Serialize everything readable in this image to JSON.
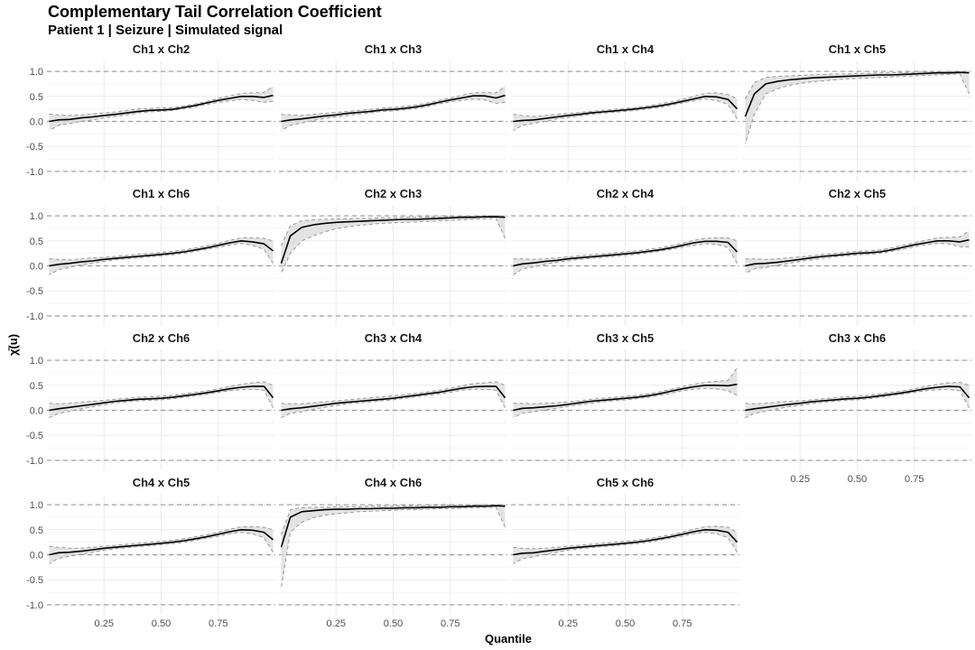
{
  "title": "Complementary Tail Correlation Coefficient",
  "subtitle": "Patient 1 | Seizure | Simulated signal",
  "colors": {
    "line": "#000000",
    "band_fill": "#d9d9d9",
    "band_border": "#999999",
    "reference_line": "#999999",
    "grid": "#ebebeb"
  },
  "chart_data": {
    "type": "line",
    "title": "Complementary Tail Correlation Coefficient",
    "subtitle": "Patient 1 | Seizure | Simulated signal",
    "xlabel": "Quantile",
    "ylabel": "χ̄(u)",
    "xlim": [
      0,
      1
    ],
    "ylim": [
      -1.2,
      1.2
    ],
    "x_ticks": [
      "0.25",
      "0.50",
      "0.75"
    ],
    "y_ticks": [
      "1.0",
      "0.5",
      "0.0",
      "-0.5",
      "-1.0"
    ],
    "reference_lines": [
      1,
      0,
      -1
    ],
    "grid": true,
    "facet_layout": {
      "columns": 4,
      "rows": 4
    },
    "x": [
      0.01,
      0.05,
      0.1,
      0.15,
      0.2,
      0.25,
      0.3,
      0.35,
      0.4,
      0.45,
      0.5,
      0.55,
      0.6,
      0.65,
      0.7,
      0.75,
      0.8,
      0.85,
      0.9,
      0.95,
      0.99
    ],
    "panels": [
      {
        "name": "Ch1 x Ch2",
        "y": [
          0.0,
          0.03,
          0.04,
          0.07,
          0.09,
          0.12,
          0.14,
          0.17,
          0.2,
          0.22,
          0.23,
          0.24,
          0.28,
          0.32,
          0.37,
          0.42,
          0.46,
          0.5,
          0.5,
          0.48,
          0.52
        ],
        "lower": [
          -0.18,
          -0.08,
          -0.04,
          0.0,
          0.03,
          0.07,
          0.1,
          0.13,
          0.17,
          0.19,
          0.2,
          0.22,
          0.25,
          0.29,
          0.34,
          0.38,
          0.41,
          0.44,
          0.42,
          0.38,
          0.4
        ],
        "upper": [
          0.15,
          0.13,
          0.12,
          0.13,
          0.15,
          0.17,
          0.19,
          0.22,
          0.25,
          0.26,
          0.27,
          0.27,
          0.31,
          0.35,
          0.4,
          0.46,
          0.51,
          0.56,
          0.57,
          0.58,
          0.7
        ]
      },
      {
        "name": "Ch1 x Ch3",
        "y": [
          0.0,
          0.03,
          0.05,
          0.08,
          0.11,
          0.13,
          0.16,
          0.18,
          0.2,
          0.23,
          0.24,
          0.26,
          0.29,
          0.33,
          0.38,
          0.43,
          0.47,
          0.51,
          0.51,
          0.47,
          0.52
        ],
        "lower": [
          -0.18,
          -0.08,
          -0.03,
          0.02,
          0.06,
          0.09,
          0.12,
          0.15,
          0.17,
          0.2,
          0.21,
          0.23,
          0.26,
          0.3,
          0.35,
          0.39,
          0.42,
          0.45,
          0.43,
          0.36,
          0.38
        ],
        "upper": [
          0.14,
          0.13,
          0.12,
          0.14,
          0.16,
          0.18,
          0.2,
          0.22,
          0.24,
          0.27,
          0.28,
          0.3,
          0.33,
          0.37,
          0.42,
          0.47,
          0.52,
          0.57,
          0.58,
          0.57,
          0.7
        ]
      },
      {
        "name": "Ch1 x Ch4",
        "y": [
          0.0,
          0.02,
          0.03,
          0.06,
          0.09,
          0.12,
          0.14,
          0.17,
          0.19,
          0.21,
          0.23,
          0.25,
          0.28,
          0.31,
          0.35,
          0.4,
          0.45,
          0.5,
          0.49,
          0.44,
          0.25
        ],
        "lower": [
          -0.18,
          -0.08,
          -0.04,
          0.0,
          0.05,
          0.08,
          0.11,
          0.14,
          0.16,
          0.18,
          0.2,
          0.22,
          0.25,
          0.28,
          0.32,
          0.37,
          0.41,
          0.45,
          0.42,
          0.34,
          0.05
        ],
        "upper": [
          0.14,
          0.12,
          0.1,
          0.12,
          0.14,
          0.16,
          0.18,
          0.2,
          0.22,
          0.24,
          0.26,
          0.28,
          0.31,
          0.35,
          0.39,
          0.44,
          0.5,
          0.56,
          0.57,
          0.54,
          0.45
        ]
      },
      {
        "name": "Ch1 x Ch5",
        "y": [
          0.1,
          0.55,
          0.75,
          0.8,
          0.83,
          0.85,
          0.87,
          0.88,
          0.89,
          0.9,
          0.91,
          0.92,
          0.93,
          0.93,
          0.94,
          0.95,
          0.96,
          0.97,
          0.97,
          0.98,
          0.97
        ],
        "lower": [
          -0.45,
          0.15,
          0.55,
          0.65,
          0.72,
          0.76,
          0.79,
          0.81,
          0.83,
          0.85,
          0.86,
          0.87,
          0.88,
          0.89,
          0.9,
          0.91,
          0.92,
          0.93,
          0.94,
          0.95,
          0.55
        ],
        "upper": [
          0.45,
          0.78,
          0.88,
          0.9,
          0.91,
          0.92,
          0.93,
          0.94,
          0.95,
          0.95,
          0.96,
          0.96,
          0.97,
          0.97,
          0.98,
          0.98,
          0.99,
          0.99,
          0.99,
          1.0,
          1.0
        ]
      },
      {
        "name": "Ch1 x Ch6",
        "y": [
          0.0,
          0.03,
          0.05,
          0.08,
          0.1,
          0.13,
          0.15,
          0.17,
          0.19,
          0.21,
          0.23,
          0.25,
          0.28,
          0.32,
          0.36,
          0.41,
          0.46,
          0.5,
          0.48,
          0.44,
          0.3
        ],
        "lower": [
          -0.18,
          -0.08,
          -0.03,
          0.02,
          0.05,
          0.09,
          0.12,
          0.14,
          0.16,
          0.18,
          0.2,
          0.22,
          0.25,
          0.29,
          0.33,
          0.37,
          0.42,
          0.45,
          0.41,
          0.33,
          0.05
        ],
        "upper": [
          0.14,
          0.13,
          0.12,
          0.14,
          0.16,
          0.17,
          0.19,
          0.21,
          0.23,
          0.25,
          0.27,
          0.29,
          0.32,
          0.36,
          0.4,
          0.45,
          0.51,
          0.56,
          0.56,
          0.55,
          0.5
        ]
      },
      {
        "name": "Ch2 x Ch3",
        "y": [
          0.05,
          0.6,
          0.77,
          0.82,
          0.85,
          0.87,
          0.88,
          0.89,
          0.9,
          0.91,
          0.92,
          0.93,
          0.93,
          0.94,
          0.95,
          0.96,
          0.97,
          0.97,
          0.98,
          0.98,
          0.97
        ],
        "lower": [
          -0.15,
          0.25,
          0.5,
          0.6,
          0.68,
          0.74,
          0.78,
          0.81,
          0.83,
          0.85,
          0.86,
          0.87,
          0.88,
          0.89,
          0.9,
          0.91,
          0.92,
          0.93,
          0.94,
          0.95,
          0.55
        ],
        "upper": [
          0.4,
          0.8,
          0.9,
          0.92,
          0.93,
          0.94,
          0.94,
          0.95,
          0.95,
          0.96,
          0.96,
          0.97,
          0.97,
          0.98,
          0.98,
          0.99,
          0.99,
          0.99,
          1.0,
          1.0,
          1.0
        ]
      },
      {
        "name": "Ch2 x Ch4",
        "y": [
          0.0,
          0.04,
          0.06,
          0.09,
          0.11,
          0.14,
          0.16,
          0.18,
          0.2,
          0.22,
          0.24,
          0.26,
          0.29,
          0.32,
          0.36,
          0.41,
          0.46,
          0.49,
          0.49,
          0.47,
          0.28
        ],
        "lower": [
          -0.18,
          -0.06,
          -0.02,
          0.03,
          0.07,
          0.1,
          0.13,
          0.15,
          0.17,
          0.19,
          0.21,
          0.23,
          0.26,
          0.29,
          0.33,
          0.37,
          0.41,
          0.44,
          0.43,
          0.37,
          0.05
        ],
        "upper": [
          0.14,
          0.14,
          0.13,
          0.14,
          0.16,
          0.18,
          0.2,
          0.22,
          0.24,
          0.26,
          0.28,
          0.3,
          0.33,
          0.36,
          0.4,
          0.45,
          0.51,
          0.55,
          0.56,
          0.56,
          0.5
        ]
      },
      {
        "name": "Ch2 x Ch5",
        "y": [
          0.0,
          0.04,
          0.05,
          0.07,
          0.1,
          0.13,
          0.16,
          0.19,
          0.21,
          0.23,
          0.25,
          0.26,
          0.28,
          0.32,
          0.37,
          0.42,
          0.46,
          0.5,
          0.5,
          0.48,
          0.52
        ],
        "lower": [
          -0.15,
          -0.06,
          -0.03,
          0.01,
          0.05,
          0.09,
          0.12,
          0.15,
          0.18,
          0.2,
          0.22,
          0.23,
          0.25,
          0.29,
          0.33,
          0.38,
          0.42,
          0.45,
          0.44,
          0.38,
          0.38
        ],
        "upper": [
          0.14,
          0.14,
          0.13,
          0.14,
          0.16,
          0.18,
          0.2,
          0.23,
          0.25,
          0.27,
          0.29,
          0.3,
          0.32,
          0.36,
          0.41,
          0.46,
          0.51,
          0.56,
          0.57,
          0.58,
          0.7
        ]
      },
      {
        "name": "Ch2 x Ch6",
        "y": [
          0.0,
          0.03,
          0.06,
          0.09,
          0.12,
          0.15,
          0.18,
          0.2,
          0.22,
          0.23,
          0.24,
          0.26,
          0.29,
          0.32,
          0.35,
          0.39,
          0.43,
          0.46,
          0.48,
          0.48,
          0.25
        ],
        "lower": [
          -0.15,
          -0.06,
          -0.02,
          0.03,
          0.07,
          0.11,
          0.15,
          0.17,
          0.19,
          0.2,
          0.21,
          0.23,
          0.26,
          0.29,
          0.32,
          0.36,
          0.39,
          0.41,
          0.42,
          0.4,
          0.05
        ],
        "upper": [
          0.14,
          0.13,
          0.14,
          0.16,
          0.18,
          0.2,
          0.22,
          0.24,
          0.26,
          0.27,
          0.28,
          0.3,
          0.33,
          0.36,
          0.39,
          0.43,
          0.48,
          0.52,
          0.55,
          0.57,
          0.5
        ]
      },
      {
        "name": "Ch3 x Ch4",
        "y": [
          0.0,
          0.03,
          0.05,
          0.08,
          0.11,
          0.14,
          0.16,
          0.18,
          0.2,
          0.22,
          0.24,
          0.27,
          0.3,
          0.33,
          0.36,
          0.4,
          0.44,
          0.47,
          0.48,
          0.48,
          0.25
        ],
        "lower": [
          -0.15,
          -0.06,
          -0.03,
          0.02,
          0.06,
          0.1,
          0.13,
          0.15,
          0.17,
          0.19,
          0.21,
          0.24,
          0.27,
          0.3,
          0.33,
          0.36,
          0.4,
          0.42,
          0.42,
          0.4,
          0.05
        ],
        "upper": [
          0.14,
          0.13,
          0.13,
          0.15,
          0.17,
          0.19,
          0.21,
          0.23,
          0.25,
          0.27,
          0.29,
          0.31,
          0.34,
          0.37,
          0.4,
          0.44,
          0.49,
          0.53,
          0.55,
          0.57,
          0.5
        ]
      },
      {
        "name": "Ch3 x Ch5",
        "y": [
          0.0,
          0.04,
          0.05,
          0.07,
          0.09,
          0.12,
          0.15,
          0.18,
          0.2,
          0.22,
          0.24,
          0.26,
          0.29,
          0.33,
          0.38,
          0.43,
          0.47,
          0.5,
          0.5,
          0.49,
          0.52
        ],
        "lower": [
          -0.15,
          -0.06,
          -0.03,
          0.01,
          0.04,
          0.08,
          0.11,
          0.14,
          0.17,
          0.19,
          0.21,
          0.23,
          0.26,
          0.3,
          0.34,
          0.39,
          0.42,
          0.44,
          0.43,
          0.39,
          0.3
        ],
        "upper": [
          0.14,
          0.14,
          0.13,
          0.14,
          0.15,
          0.17,
          0.19,
          0.22,
          0.24,
          0.26,
          0.28,
          0.3,
          0.33,
          0.37,
          0.42,
          0.47,
          0.52,
          0.56,
          0.58,
          0.6,
          0.85
        ]
      },
      {
        "name": "Ch3 x Ch6",
        "y": [
          0.0,
          0.03,
          0.06,
          0.09,
          0.12,
          0.14,
          0.17,
          0.19,
          0.21,
          0.23,
          0.24,
          0.26,
          0.29,
          0.32,
          0.35,
          0.39,
          0.43,
          0.46,
          0.48,
          0.47,
          0.25
        ],
        "lower": [
          -0.15,
          -0.06,
          -0.02,
          0.03,
          0.07,
          0.1,
          0.13,
          0.16,
          0.18,
          0.2,
          0.21,
          0.23,
          0.26,
          0.29,
          0.32,
          0.36,
          0.39,
          0.41,
          0.42,
          0.39,
          0.05
        ],
        "upper": [
          0.14,
          0.13,
          0.14,
          0.16,
          0.18,
          0.19,
          0.21,
          0.23,
          0.25,
          0.27,
          0.28,
          0.3,
          0.33,
          0.36,
          0.39,
          0.43,
          0.48,
          0.52,
          0.55,
          0.56,
          0.5
        ]
      },
      {
        "name": "Ch4 x Ch5",
        "y": [
          0.0,
          0.04,
          0.05,
          0.07,
          0.1,
          0.13,
          0.15,
          0.17,
          0.19,
          0.21,
          0.23,
          0.25,
          0.28,
          0.32,
          0.36,
          0.41,
          0.46,
          0.5,
          0.49,
          0.45,
          0.3
        ],
        "lower": [
          -0.18,
          -0.07,
          -0.03,
          0.01,
          0.05,
          0.09,
          0.12,
          0.14,
          0.16,
          0.18,
          0.2,
          0.22,
          0.25,
          0.29,
          0.33,
          0.37,
          0.42,
          0.45,
          0.42,
          0.34,
          0.05
        ],
        "upper": [
          0.17,
          0.15,
          0.13,
          0.13,
          0.15,
          0.17,
          0.19,
          0.21,
          0.23,
          0.25,
          0.27,
          0.29,
          0.32,
          0.36,
          0.4,
          0.45,
          0.51,
          0.56,
          0.56,
          0.55,
          0.5
        ]
      },
      {
        "name": "Ch4 x Ch6",
        "y": [
          0.15,
          0.75,
          0.86,
          0.88,
          0.9,
          0.91,
          0.91,
          0.92,
          0.92,
          0.93,
          0.93,
          0.94,
          0.94,
          0.95,
          0.95,
          0.96,
          0.96,
          0.97,
          0.97,
          0.98,
          0.97
        ],
        "lower": [
          -0.65,
          0.45,
          0.65,
          0.74,
          0.79,
          0.82,
          0.84,
          0.86,
          0.87,
          0.88,
          0.89,
          0.9,
          0.9,
          0.91,
          0.92,
          0.92,
          0.93,
          0.94,
          0.94,
          0.95,
          0.55
        ],
        "upper": [
          0.4,
          0.9,
          0.94,
          0.95,
          0.95,
          0.96,
          0.96,
          0.96,
          0.97,
          0.97,
          0.97,
          0.98,
          0.98,
          0.98,
          0.99,
          0.99,
          0.99,
          0.99,
          1.0,
          1.0,
          1.0
        ]
      },
      {
        "name": "Ch5 x Ch6",
        "y": [
          0.0,
          0.03,
          0.04,
          0.07,
          0.1,
          0.13,
          0.15,
          0.17,
          0.19,
          0.21,
          0.23,
          0.25,
          0.28,
          0.32,
          0.36,
          0.41,
          0.46,
          0.5,
          0.49,
          0.45,
          0.25
        ],
        "lower": [
          -0.18,
          -0.08,
          -0.04,
          0.01,
          0.05,
          0.09,
          0.12,
          0.14,
          0.16,
          0.18,
          0.2,
          0.22,
          0.25,
          0.29,
          0.33,
          0.37,
          0.42,
          0.45,
          0.42,
          0.34,
          0.05
        ],
        "upper": [
          0.15,
          0.13,
          0.12,
          0.13,
          0.15,
          0.17,
          0.19,
          0.21,
          0.23,
          0.25,
          0.27,
          0.29,
          0.32,
          0.36,
          0.4,
          0.45,
          0.51,
          0.56,
          0.57,
          0.55,
          0.45
        ]
      }
    ]
  }
}
